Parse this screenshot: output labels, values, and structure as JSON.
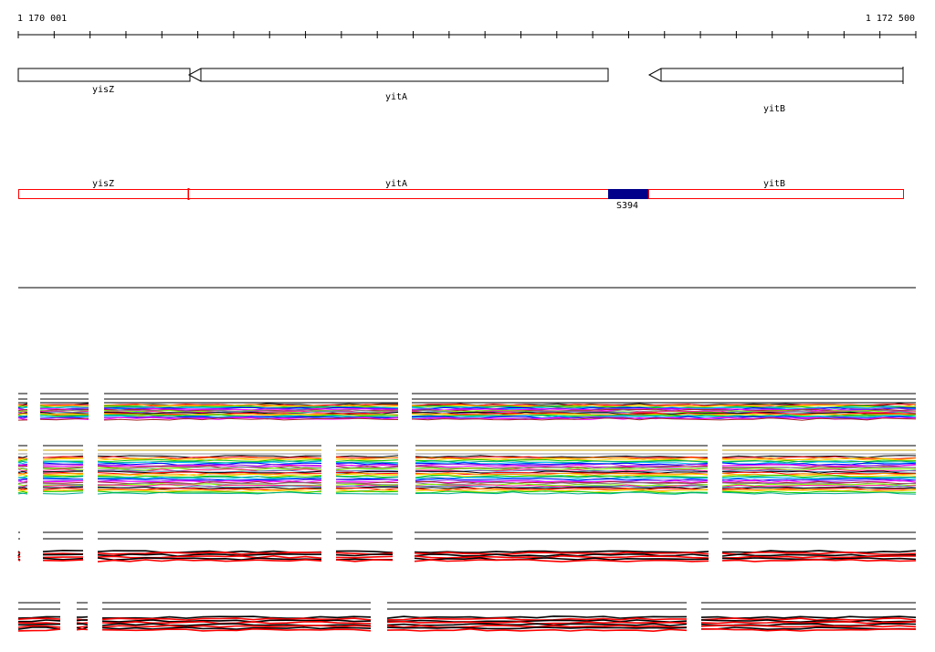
{
  "ruler": {
    "start_label": "1 170 001",
    "end_label": "1 172 500"
  },
  "genes": [
    {
      "name": "yisZ",
      "strand": "-"
    },
    {
      "name": "yitA",
      "strand": "-"
    },
    {
      "name": "yitB",
      "strand": "-"
    }
  ],
  "segments": [
    {
      "name": "yisZ",
      "type": "gene"
    },
    {
      "name": "yitA",
      "type": "gene"
    },
    {
      "name": "S394",
      "type": "intergenic"
    },
    {
      "name": "yitB",
      "type": "gene"
    }
  ],
  "colors": {
    "segment_outline": "#ff0000",
    "intergenic_fill": "#00008b",
    "profile_palette": [
      "#000000",
      "#ff0000",
      "#ff9900",
      "#ffd700",
      "#00cc00",
      "#00aa88",
      "#00bfff",
      "#0000ff",
      "#8a2be2",
      "#ff00ff",
      "#a52a2a",
      "#808080",
      "#7fff00",
      "#ff1493",
      "#4682b4"
    ]
  },
  "profiles": {
    "panel_count": 4
  }
}
